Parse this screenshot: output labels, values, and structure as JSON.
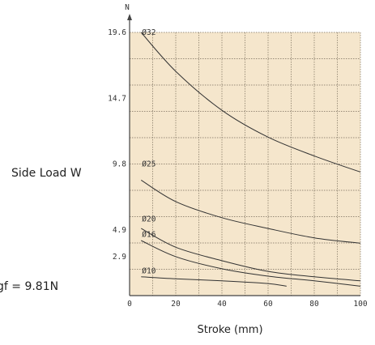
{
  "chart_data": {
    "type": "line",
    "ylabel_unit": "N",
    "ylabel": "Side  Load W",
    "xlabel": "Stroke (mm)",
    "note": "gf = 9.81N",
    "xlim": [
      0,
      100
    ],
    "ylim": [
      0,
      19.6
    ],
    "x_ticks": [
      "0",
      "20",
      "40",
      "60",
      "80",
      "100"
    ],
    "y_ticks": [
      {
        "value": 19.6,
        "label": "19.6"
      },
      {
        "value": 14.7,
        "label": "14.7"
      },
      {
        "value": 9.8,
        "label": "9.8"
      },
      {
        "value": 4.9,
        "label": "4.9"
      },
      {
        "value": 2.9,
        "label": "2.9"
      }
    ],
    "grid": true,
    "colors": {
      "plot_bg": "#f5e6cc",
      "grid": "#7a6e5c",
      "curve": "#333333",
      "axis": "#444444"
    },
    "series": [
      {
        "name": "Ø32",
        "points": [
          [
            5,
            19.6
          ],
          [
            20,
            16.7
          ],
          [
            40,
            13.8
          ],
          [
            60,
            11.8
          ],
          [
            80,
            10.4
          ],
          [
            100,
            9.2
          ]
        ],
        "label_at": [
          5,
          19.6
        ]
      },
      {
        "name": "Ø25",
        "points": [
          [
            5,
            8.6
          ],
          [
            20,
            7.0
          ],
          [
            40,
            5.8
          ],
          [
            60,
            5.0
          ],
          [
            80,
            4.3
          ],
          [
            100,
            3.9
          ]
        ],
        "label_at": [
          5,
          9.8
        ]
      },
      {
        "name": "Ø20",
        "points": [
          [
            5,
            5.0
          ],
          [
            20,
            3.6
          ],
          [
            40,
            2.6
          ],
          [
            60,
            1.8
          ],
          [
            80,
            1.4
          ],
          [
            100,
            1.1
          ]
        ],
        "label_at": [
          5,
          5.7
        ]
      },
      {
        "name": "Ø16",
        "points": [
          [
            5,
            4.1
          ],
          [
            20,
            2.9
          ],
          [
            40,
            2.0
          ],
          [
            60,
            1.45
          ],
          [
            80,
            1.1
          ],
          [
            100,
            0.7
          ]
        ],
        "label_at": [
          5,
          4.55
        ]
      },
      {
        "name": "Ø10",
        "points": [
          [
            5,
            1.4
          ],
          [
            20,
            1.25
          ],
          [
            40,
            1.1
          ],
          [
            60,
            0.9
          ],
          [
            68,
            0.7
          ]
        ],
        "label_at": [
          5,
          1.85
        ]
      }
    ]
  }
}
